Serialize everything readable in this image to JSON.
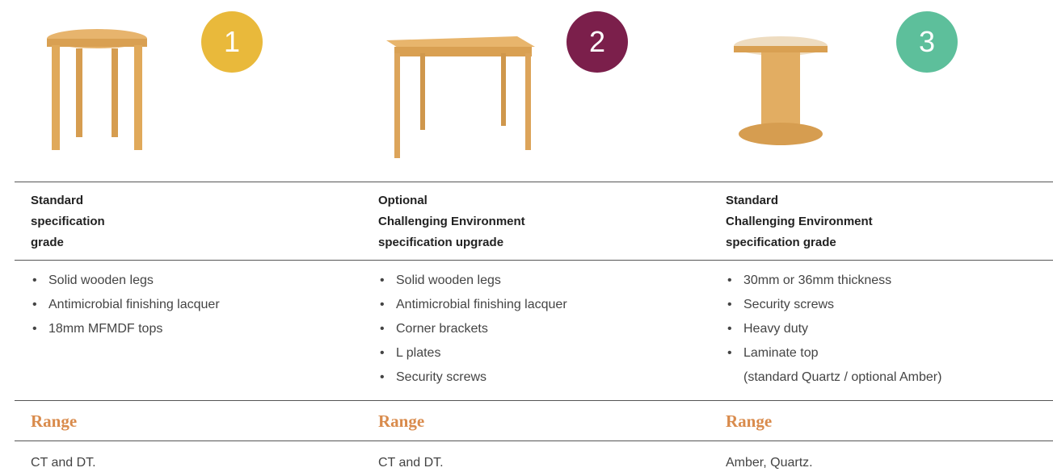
{
  "columns": [
    {
      "badge": "1",
      "badge_color": "#e9b93b",
      "grade": [
        "Standard",
        "specification",
        "grade"
      ],
      "features": [
        "Solid wooden legs",
        "Antimicrobial finishing lacquer",
        "18mm MFMDF tops"
      ],
      "range_heading": "Range",
      "range": "CT and DT."
    },
    {
      "badge": "2",
      "badge_color": "#7b1f4b",
      "grade": [
        "Optional",
        "Challenging Environment",
        "specification upgrade"
      ],
      "features": [
        "Solid wooden legs",
        "Antimicrobial finishing lacquer",
        "Corner brackets",
        "L plates",
        "Security screws"
      ],
      "range_heading": "Range",
      "range": "CT and DT."
    },
    {
      "badge": "3",
      "badge_color": "#5dbf9b",
      "grade": [
        "Standard",
        "Challenging Environment",
        "specification grade"
      ],
      "features": [
        "30mm or 36mm thickness",
        "Security screws",
        "Heavy duty",
        "Laminate top\n(standard Quartz / optional Amber)"
      ],
      "range_heading": "Range",
      "range": "Amber, Quartz."
    }
  ]
}
